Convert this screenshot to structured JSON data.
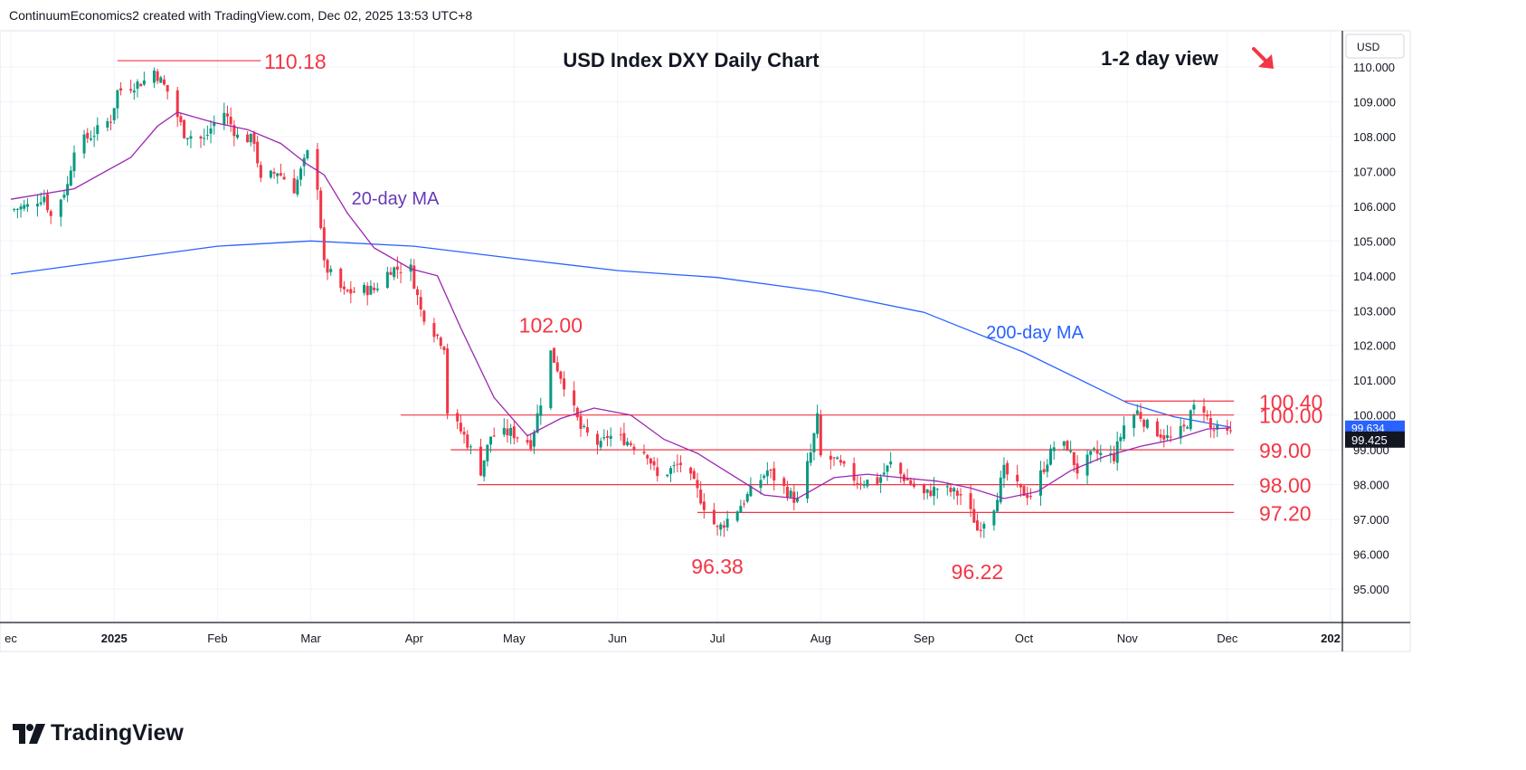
{
  "header": {
    "attribution": "ContinuumEconomics2 created with TradingView.com, Dec 02, 2025 13:53 UTC+8"
  },
  "footer": {
    "brand": "TradingView"
  },
  "colors": {
    "up": "#089981",
    "down": "#f23645",
    "ma20": "#9c27b0",
    "ma200": "#2962ff",
    "level": "#f23645",
    "level_label": "#f23645",
    "ma20_label": "#673ab7",
    "ma200_label": "#2962ff",
    "axis_text": "#131722",
    "price_tag_bg": "#131722"
  },
  "chart_data": {
    "type": "candlestick",
    "title": "USD Index DXY Daily Chart",
    "view_note": "1-2 day view",
    "view_direction": "down",
    "currency": "USD",
    "y_range": [
      94.3,
      111.0
    ],
    "y_ticks": [
      "110.000",
      "109.000",
      "108.000",
      "107.000",
      "106.000",
      "105.000",
      "104.000",
      "103.000",
      "102.000",
      "101.000",
      "100.000",
      "99.000",
      "98.000",
      "97.000",
      "96.000",
      "95.000"
    ],
    "x_ticks": [
      {
        "label": "ec",
        "date": "2024-12-01"
      },
      {
        "label": "2025",
        "date": "2025-01-01",
        "bold": true
      },
      {
        "label": "Feb",
        "date": "2025-02-01"
      },
      {
        "label": "Mar",
        "date": "2025-03-01"
      },
      {
        "label": "Apr",
        "date": "2025-04-01"
      },
      {
        "label": "May",
        "date": "2025-05-01"
      },
      {
        "label": "Jun",
        "date": "2025-06-01"
      },
      {
        "label": "Jul",
        "date": "2025-07-01"
      },
      {
        "label": "Aug",
        "date": "2025-08-01"
      },
      {
        "label": "Sep",
        "date": "2025-09-01"
      },
      {
        "label": "Oct",
        "date": "2025-10-01"
      },
      {
        "label": "Nov",
        "date": "2025-11-01"
      },
      {
        "label": "Dec",
        "date": "2025-12-01"
      },
      {
        "label": "202",
        "date": "2026-01-01",
        "bold": true
      }
    ],
    "last_price": "99.425",
    "ma20_value": "99.634",
    "series_labels": {
      "ma20": "20-day MA",
      "ma200": "200-day MA"
    },
    "levels": [
      {
        "label": "110.18",
        "value": 110.18,
        "from": "2025-01-02",
        "to": "2025-02-14"
      },
      {
        "label": "100.40",
        "value": 100.4,
        "from": "2025-10-31",
        "to": "2025-12-03"
      },
      {
        "label": "100.00",
        "value": 100.0,
        "from": "2025-03-28",
        "to": "2025-12-03"
      },
      {
        "label": "99.00",
        "value": 99.0,
        "from": "2025-04-12",
        "to": "2025-12-03"
      },
      {
        "label": "98.00",
        "value": 98.0,
        "from": "2025-04-20",
        "to": "2025-12-03"
      },
      {
        "label": "97.20",
        "value": 97.2,
        "from": "2025-06-25",
        "to": "2025-12-03"
      }
    ],
    "annotations": [
      {
        "label": "102.00",
        "date": "2025-05-12",
        "value": 102.0,
        "pos": "above"
      },
      {
        "label": "96.38",
        "date": "2025-07-01",
        "value": 96.38,
        "pos": "below"
      },
      {
        "label": "96.22",
        "date": "2025-09-17",
        "value": 96.22,
        "pos": "below"
      }
    ],
    "anchors": [
      [
        "2024-12-01",
        105.9
      ],
      [
        "2024-12-06",
        106.0
      ],
      [
        "2024-12-11",
        106.3
      ],
      [
        "2024-12-13",
        105.7
      ],
      [
        "2024-12-18",
        106.6
      ],
      [
        "2024-12-20",
        107.7
      ],
      [
        "2024-12-26",
        108.1
      ],
      [
        "2024-12-31",
        108.5
      ],
      [
        "2025-01-02",
        109.3
      ],
      [
        "2025-01-10",
        109.6
      ],
      [
        "2025-01-13",
        109.9
      ],
      [
        "2025-01-17",
        109.3
      ],
      [
        "2025-01-22",
        108.1
      ],
      [
        "2025-01-28",
        107.9
      ],
      [
        "2025-01-31",
        108.4
      ],
      [
        "2025-02-03",
        108.7
      ],
      [
        "2025-02-07",
        108.0
      ],
      [
        "2025-02-12",
        107.9
      ],
      [
        "2025-02-14",
        106.7
      ],
      [
        "2025-02-19",
        107.0
      ],
      [
        "2025-02-24",
        106.5
      ],
      [
        "2025-02-28",
        107.5
      ],
      [
        "2025-03-03",
        106.6
      ],
      [
        "2025-03-05",
        104.3
      ],
      [
        "2025-03-11",
        103.5
      ],
      [
        "2025-03-17",
        103.6
      ],
      [
        "2025-03-20",
        103.6
      ],
      [
        "2025-03-25",
        104.2
      ],
      [
        "2025-03-31",
        104.2
      ],
      [
        "2025-04-03",
        103.0
      ],
      [
        "2025-04-07",
        102.4
      ],
      [
        "2025-04-10",
        102.0
      ],
      [
        "2025-04-11",
        100.1
      ],
      [
        "2025-04-16",
        99.4
      ],
      [
        "2025-04-21",
        98.4
      ],
      [
        "2025-04-24",
        99.4
      ],
      [
        "2025-04-30",
        99.5
      ],
      [
        "2025-05-06",
        99.2
      ],
      [
        "2025-05-09",
        100.4
      ],
      [
        "2025-05-12",
        101.8
      ],
      [
        "2025-05-16",
        100.9
      ],
      [
        "2025-05-21",
        99.6
      ],
      [
        "2025-05-27",
        99.1
      ],
      [
        "2025-05-29",
        99.4
      ],
      [
        "2025-06-03",
        99.3
      ],
      [
        "2025-06-10",
        98.9
      ],
      [
        "2025-06-13",
        98.2
      ],
      [
        "2025-06-20",
        98.6
      ],
      [
        "2025-06-24",
        98.0
      ],
      [
        "2025-06-27",
        97.4
      ],
      [
        "2025-07-01",
        96.7
      ],
      [
        "2025-07-07",
        97.3
      ],
      [
        "2025-07-11",
        97.8
      ],
      [
        "2025-07-16",
        98.4
      ],
      [
        "2025-07-22",
        97.8
      ],
      [
        "2025-07-25",
        97.5
      ],
      [
        "2025-07-29",
        98.9
      ],
      [
        "2025-07-31",
        99.9
      ],
      [
        "2025-08-01",
        98.8
      ],
      [
        "2025-08-05",
        98.7
      ],
      [
        "2025-08-12",
        98.1
      ],
      [
        "2025-08-18",
        98.1
      ],
      [
        "2025-08-22",
        98.6
      ],
      [
        "2025-08-26",
        98.2
      ],
      [
        "2025-09-01",
        97.7
      ],
      [
        "2025-09-05",
        97.9
      ],
      [
        "2025-09-09",
        97.8
      ],
      [
        "2025-09-12",
        97.7
      ],
      [
        "2025-09-16",
        97.0
      ],
      [
        "2025-09-17",
        96.7
      ],
      [
        "2025-09-22",
        97.4
      ],
      [
        "2025-09-25",
        98.4
      ],
      [
        "2025-09-30",
        97.8
      ],
      [
        "2025-10-03",
        97.7
      ],
      [
        "2025-10-07",
        98.5
      ],
      [
        "2025-10-10",
        99.1
      ],
      [
        "2025-10-14",
        99.1
      ],
      [
        "2025-10-17",
        98.4
      ],
      [
        "2025-10-22",
        98.9
      ],
      [
        "2025-10-28",
        98.8
      ],
      [
        "2025-10-31",
        99.7
      ],
      [
        "2025-11-04",
        100.1
      ],
      [
        "2025-11-07",
        99.7
      ],
      [
        "2025-11-12",
        99.4
      ],
      [
        "2025-11-14",
        99.3
      ],
      [
        "2025-11-18",
        99.6
      ],
      [
        "2025-11-21",
        100.2
      ],
      [
        "2025-11-24",
        100.2
      ],
      [
        "2025-11-26",
        99.6
      ],
      [
        "2025-12-01",
        99.45
      ],
      [
        "2025-12-02",
        99.43
      ]
    ],
    "ma20": [
      [
        "2024-12-01",
        106.2
      ],
      [
        "2024-12-20",
        106.5
      ],
      [
        "2025-01-06",
        107.4
      ],
      [
        "2025-01-14",
        108.3
      ],
      [
        "2025-01-20",
        108.7
      ],
      [
        "2025-01-31",
        108.4
      ],
      [
        "2025-02-10",
        108.2
      ],
      [
        "2025-02-20",
        107.8
      ],
      [
        "2025-02-28",
        107.2
      ],
      [
        "2025-03-05",
        106.9
      ],
      [
        "2025-03-12",
        105.8
      ],
      [
        "2025-03-20",
        104.8
      ],
      [
        "2025-03-31",
        104.2
      ],
      [
        "2025-04-08",
        104.0
      ],
      [
        "2025-04-15",
        102.5
      ],
      [
        "2025-04-25",
        100.5
      ],
      [
        "2025-05-05",
        99.4
      ],
      [
        "2025-05-15",
        99.9
      ],
      [
        "2025-05-25",
        100.2
      ],
      [
        "2025-06-05",
        100.0
      ],
      [
        "2025-06-15",
        99.3
      ],
      [
        "2025-06-25",
        98.9
      ],
      [
        "2025-07-05",
        98.3
      ],
      [
        "2025-07-15",
        97.7
      ],
      [
        "2025-07-25",
        97.6
      ],
      [
        "2025-08-05",
        98.2
      ],
      [
        "2025-08-15",
        98.3
      ],
      [
        "2025-08-25",
        98.2
      ],
      [
        "2025-09-05",
        98.1
      ],
      [
        "2025-09-15",
        97.9
      ],
      [
        "2025-09-25",
        97.6
      ],
      [
        "2025-10-05",
        97.8
      ],
      [
        "2025-10-15",
        98.4
      ],
      [
        "2025-10-25",
        98.8
      ],
      [
        "2025-11-05",
        99.1
      ],
      [
        "2025-11-15",
        99.3
      ],
      [
        "2025-11-25",
        99.6
      ],
      [
        "2025-12-02",
        99.63
      ]
    ],
    "ma200": [
      [
        "2024-12-01",
        104.05
      ],
      [
        "2025-01-01",
        104.45
      ],
      [
        "2025-02-01",
        104.85
      ],
      [
        "2025-03-01",
        105.0
      ],
      [
        "2025-04-01",
        104.85
      ],
      [
        "2025-05-01",
        104.5
      ],
      [
        "2025-06-01",
        104.15
      ],
      [
        "2025-07-01",
        103.95
      ],
      [
        "2025-08-01",
        103.55
      ],
      [
        "2025-09-01",
        102.95
      ],
      [
        "2025-10-01",
        101.8
      ],
      [
        "2025-11-01",
        100.35
      ],
      [
        "2025-11-15",
        99.95
      ],
      [
        "2025-12-02",
        99.65
      ]
    ]
  }
}
